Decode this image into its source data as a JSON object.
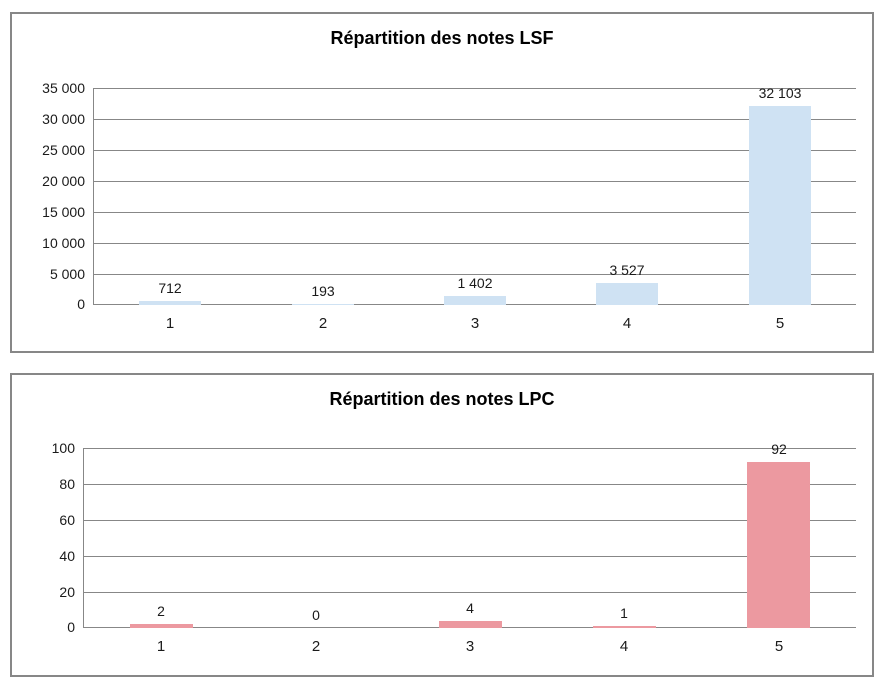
{
  "chart_data": [
    {
      "type": "bar",
      "title": "Répartition des notes LSF",
      "categories": [
        "1",
        "2",
        "3",
        "4",
        "5"
      ],
      "values": [
        712,
        193,
        1402,
        3527,
        32103
      ],
      "data_labels": [
        "712",
        "193",
        "1 402",
        "3 527",
        "32 103"
      ],
      "ylim": [
        0,
        35000
      ],
      "ytick_labels": [
        "35 000",
        "30 000",
        "25 000",
        "20 000",
        "15 000",
        "10 000",
        "5 000",
        "0"
      ],
      "xlabel": "",
      "ylabel": "",
      "grid": true,
      "legend": false,
      "bar_color": "#cfe2f3"
    },
    {
      "type": "bar",
      "title": "Répartition des notes LPC",
      "categories": [
        "1",
        "2",
        "3",
        "4",
        "5"
      ],
      "values": [
        2,
        0,
        4,
        1,
        92
      ],
      "data_labels": [
        "2",
        "0",
        "4",
        "1",
        "92"
      ],
      "ylim": [
        0,
        100
      ],
      "ytick_labels": [
        "100",
        "80",
        "60",
        "40",
        "20",
        "0"
      ],
      "xlabel": "",
      "ylabel": "",
      "grid": true,
      "legend": false,
      "bar_color": "#ec99a0"
    }
  ],
  "colors": {
    "panel_border": "#878787",
    "gridline": "#878787",
    "tick_text": "#1a1a1a",
    "title_text": "#000000",
    "lsf_bar": "#cfe2f3",
    "lpc_bar": "#ec99a0"
  }
}
